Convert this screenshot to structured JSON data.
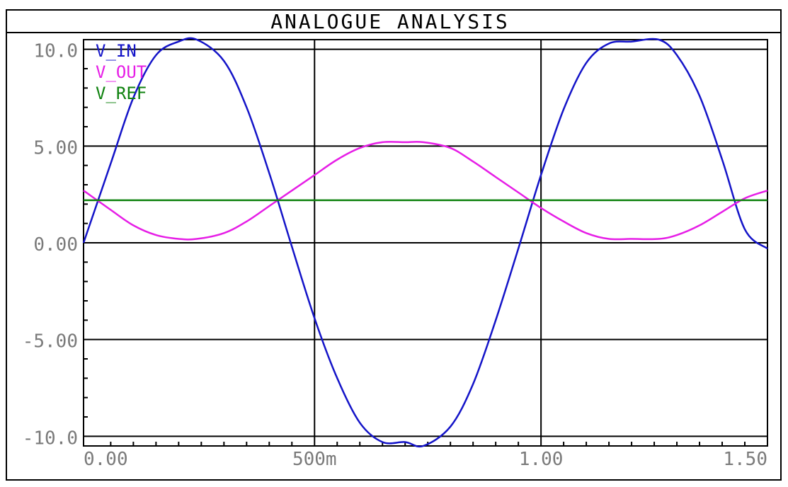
{
  "window": {
    "title": "ANALOGUE ANALYSIS"
  },
  "chart_data": {
    "type": "line",
    "title": "ANALOGUE ANALYSIS",
    "xlim": [
      -0.01,
      1.5
    ],
    "ylim": [
      -10.5,
      10.5
    ],
    "x_ticks": [
      0.0,
      0.5,
      1.0,
      1.5
    ],
    "x_tick_labels": [
      "0.00",
      "500m",
      "1.00",
      "1.50"
    ],
    "y_ticks": [
      10.0,
      5.0,
      0.0,
      -5.0,
      -10.0
    ],
    "y_tick_labels": [
      "10.0",
      "5.00",
      "0.00",
      "-5.00",
      "-10.0"
    ],
    "grid": true,
    "legend_position": "top-left",
    "series": [
      {
        "name": "V_IN",
        "color": "#1414c8",
        "x": [
          -0.01,
          0.05,
          0.1,
          0.15,
          0.2,
          0.24,
          0.3,
          0.35,
          0.4,
          0.45,
          0.5,
          0.55,
          0.6,
          0.65,
          0.7,
          0.74,
          0.8,
          0.85,
          0.9,
          0.95,
          1.0,
          1.05,
          1.1,
          1.15,
          1.2,
          1.26,
          1.3,
          1.35,
          1.4,
          1.45,
          1.5
        ],
        "y": [
          0.0,
          4.1,
          7.5,
          9.7,
          10.4,
          10.5,
          9.4,
          7.0,
          3.6,
          -0.2,
          -3.9,
          -7.0,
          -9.3,
          -10.3,
          -10.3,
          -10.5,
          -9.5,
          -7.3,
          -4.0,
          -0.3,
          3.5,
          6.9,
          9.3,
          10.3,
          10.4,
          10.5,
          9.7,
          7.6,
          4.3,
          0.7,
          -0.3
        ]
      },
      {
        "name": "V_OUT",
        "color": "#e61ee6",
        "x": [
          -0.01,
          0.05,
          0.1,
          0.15,
          0.2,
          0.24,
          0.3,
          0.35,
          0.4,
          0.45,
          0.5,
          0.55,
          0.6,
          0.65,
          0.7,
          0.74,
          0.8,
          0.85,
          0.9,
          0.95,
          1.0,
          1.05,
          1.1,
          1.15,
          1.2,
          1.26,
          1.3,
          1.35,
          1.4,
          1.45,
          1.5
        ],
        "y": [
          2.7,
          1.7,
          0.9,
          0.4,
          0.2,
          0.2,
          0.5,
          1.1,
          1.9,
          2.7,
          3.5,
          4.3,
          4.9,
          5.2,
          5.2,
          5.2,
          4.9,
          4.2,
          3.4,
          2.6,
          1.8,
          1.1,
          0.5,
          0.2,
          0.2,
          0.2,
          0.4,
          0.9,
          1.6,
          2.3,
          2.7
        ]
      },
      {
        "name": "V_REF",
        "color": "#0f820f",
        "x": [
          -0.01,
          1.5
        ],
        "y": [
          2.2,
          2.2
        ]
      }
    ]
  }
}
